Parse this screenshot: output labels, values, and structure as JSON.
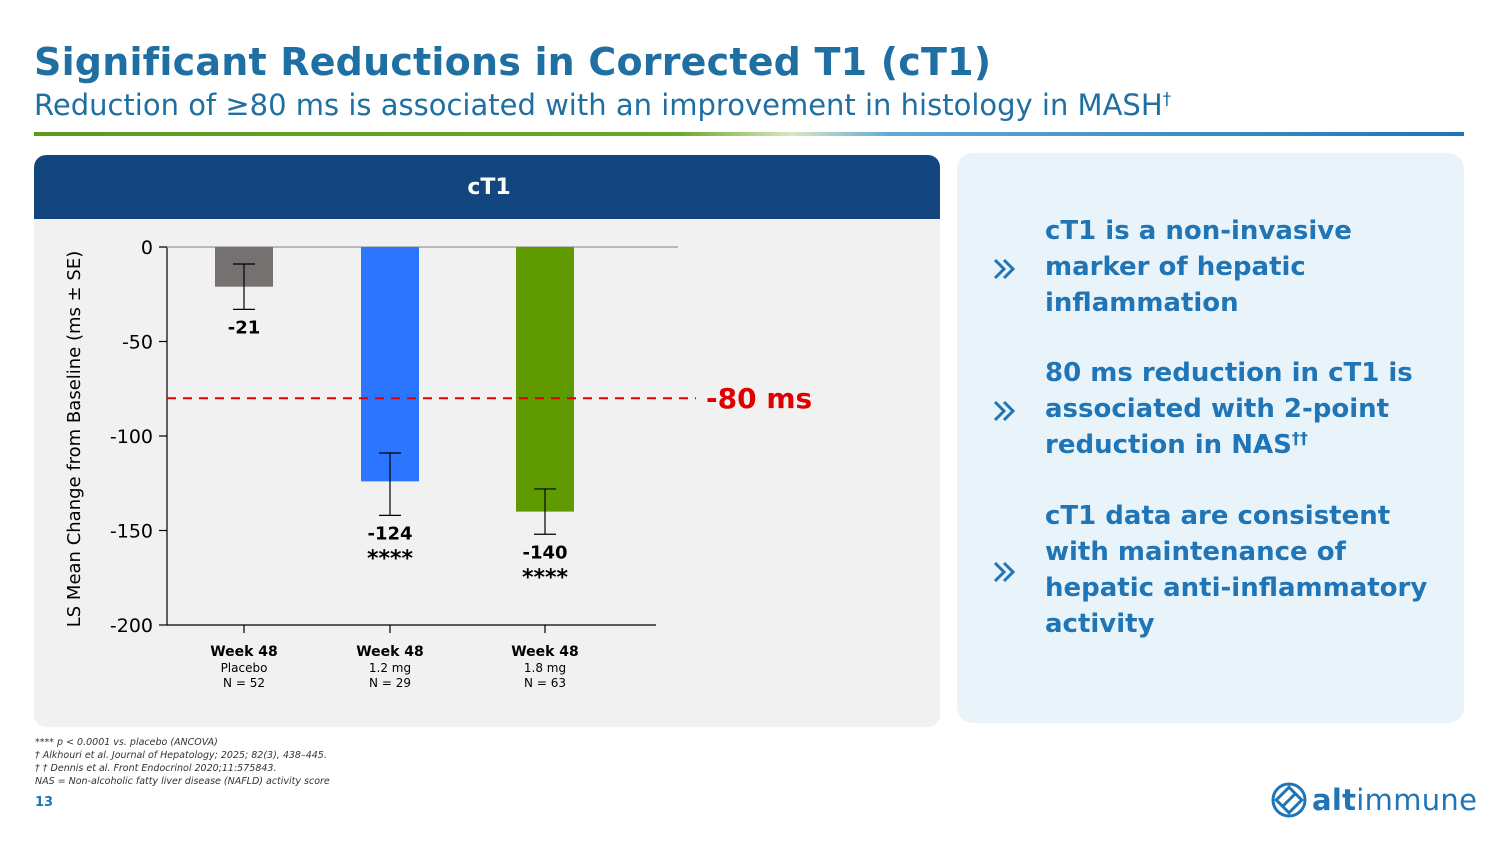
{
  "header": {
    "title": "Significant Reductions in Corrected T1 (cT1)",
    "subtitle_text": "Reduction of ≥80 ms is associated with an improvement in histology in MASH",
    "subtitle_sup": "†"
  },
  "chart_panel": {
    "header_label": "cT1"
  },
  "chart_data": {
    "type": "bar",
    "title": "cT1",
    "ylabel": "LS Mean Change from Baseline (ms ± SE)",
    "ylim": [
      -200,
      0
    ],
    "yticks": [
      0,
      -50,
      -100,
      -150,
      -200
    ],
    "ytick_labels": [
      "0",
      "-50",
      "-100",
      "-150",
      "-200"
    ],
    "categories": [
      {
        "week": "Week 48",
        "group": "Placebo",
        "n": "N = 52"
      },
      {
        "week": "Week 48",
        "group": "1.2 mg",
        "n": "N = 29"
      },
      {
        "week": "Week 48",
        "group": "1.8 mg",
        "n": "N = 63"
      }
    ],
    "values": [
      -21,
      -124,
      -140
    ],
    "value_labels": [
      "-21",
      "-124",
      "-140"
    ],
    "error_low": [
      -33,
      -142,
      -152
    ],
    "error_high": [
      -9,
      -109,
      -128
    ],
    "significance": [
      "",
      "****",
      "****"
    ],
    "colors": [
      "#767171",
      "#2b75ff",
      "#5f9a00"
    ],
    "reference_line": {
      "value": -80,
      "label": "-80 ms",
      "color": "#e00000"
    }
  },
  "bullets": [
    {
      "lines": [
        "cT1 is a non-invasive",
        "marker of hepatic",
        "inflammation"
      ],
      "sup": ""
    },
    {
      "lines": [
        "80 ms reduction in cT1 is",
        "associated with 2-point",
        "reduction in NAS"
      ],
      "sup": "††"
    },
    {
      "lines": [
        "cT1 data are consistent",
        "with maintenance of",
        "hepatic anti-inflammatory",
        "activity"
      ],
      "sup": ""
    }
  ],
  "footnotes": [
    "**** p  < 0.0001 vs. placebo (ANCOVA)",
    "† Alkhouri et al. Journal of Hepatology; 2025; 82(3), 438–445.",
    "† † Dennis et al. Front Endocrinol 2020;11:575843.",
    "NAS = Non-alcoholic fatty liver disease (NAFLD) activity score"
  ],
  "page_number": "13",
  "logo": {
    "prefix": "alt",
    "suffix": "immune",
    "color": "#1f75b6"
  },
  "colors": {
    "title": "#1f6fa3",
    "accent_blue": "#1f75b6",
    "header_navy": "#13467f",
    "info_bg": "#e9f3fa",
    "chart_bg": "#f1f1f1"
  }
}
